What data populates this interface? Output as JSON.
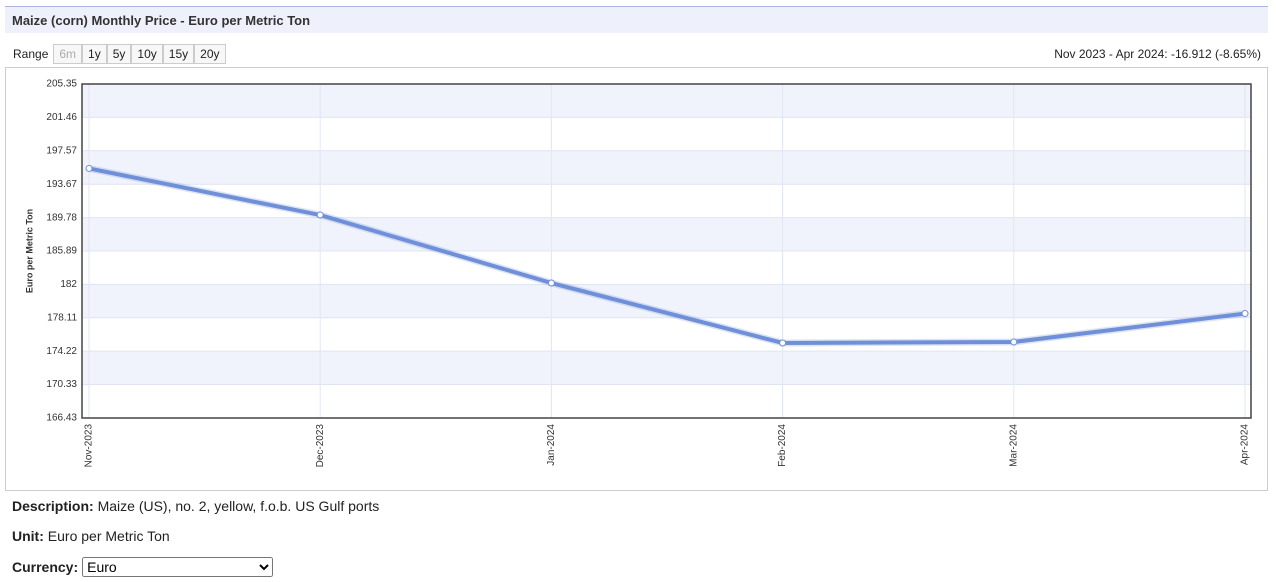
{
  "header": {
    "title": "Maize (corn) Monthly Price - Euro per Metric Ton"
  },
  "range": {
    "label": "Range",
    "options": [
      "6m",
      "1y",
      "5y",
      "10y",
      "15y",
      "20y"
    ]
  },
  "summary": "Nov 2023 - Apr 2024: -16.912 (-8.65%)",
  "chart_data": {
    "type": "line",
    "ylabel": "Euro per Metric Ton",
    "categories": [
      "Nov-2023",
      "Dec-2023",
      "Jan-2024",
      "Feb-2024",
      "Mar-2024",
      "Apr-2024"
    ],
    "values": [
      195.51,
      190.08,
      182.16,
      175.17,
      175.29,
      178.6
    ],
    "color": "#6f8fd8",
    "ylim": [
      166.43,
      205.35
    ],
    "yticks": [
      166.43,
      170.33,
      174.22,
      178.11,
      182,
      185.89,
      189.78,
      193.67,
      197.57,
      201.46,
      205.35
    ],
    "grid": true
  },
  "details": {
    "description_label": "Description:",
    "description": "Maize (US), no. 2, yellow, f.o.b. US Gulf ports",
    "unit_label": "Unit:",
    "unit": "Euro per Metric Ton",
    "currency_label": "Currency:",
    "currency": "Euro"
  }
}
